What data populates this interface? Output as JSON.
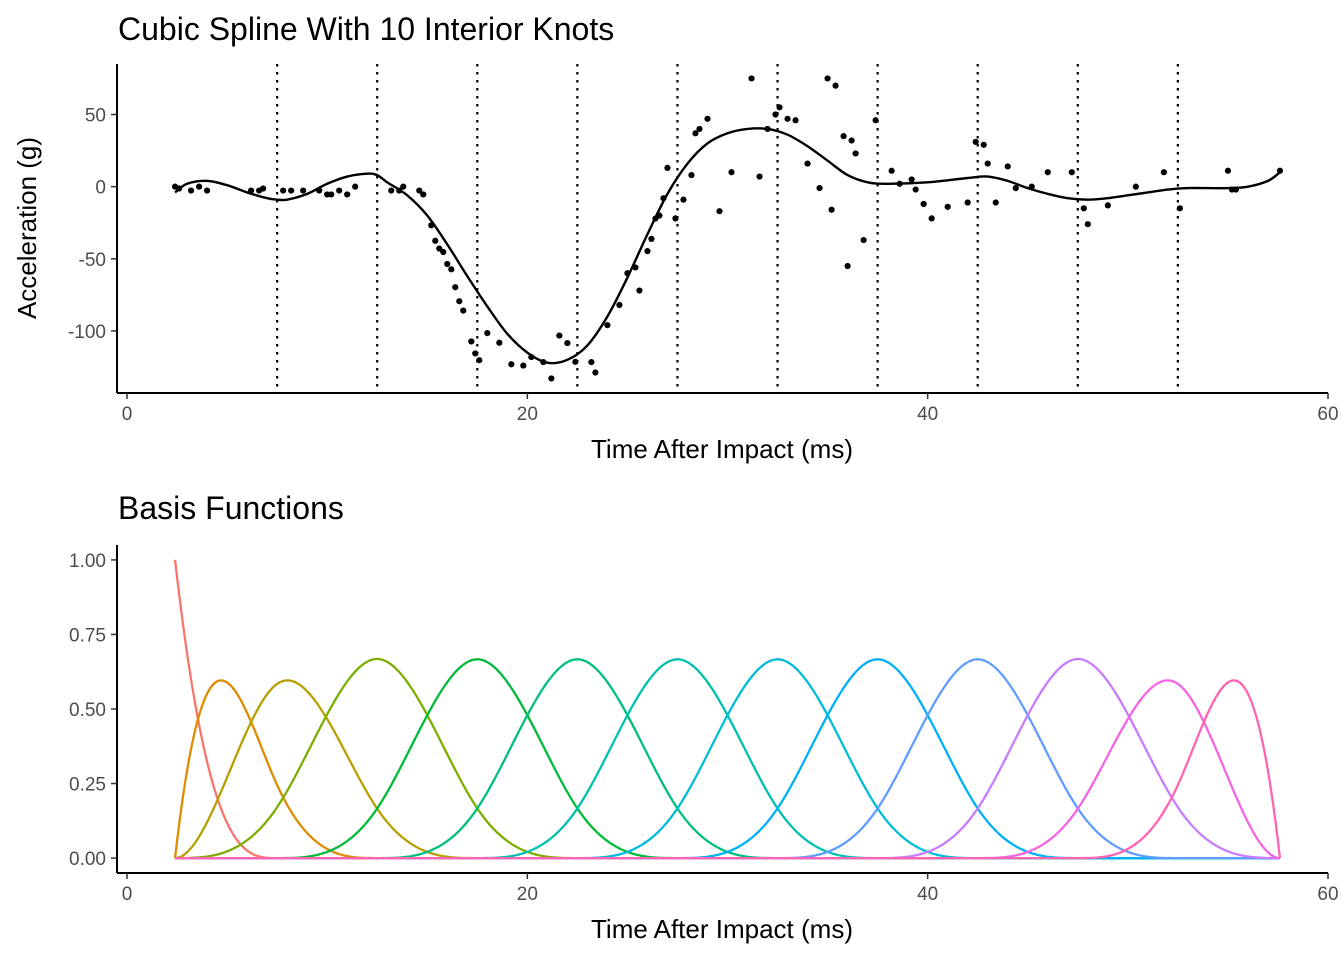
{
  "chart_data": [
    {
      "type": "scatter",
      "title": "Cubic Spline With 10 Interior Knots",
      "xlabel": "Time After Impact (ms)",
      "ylabel": "Acceleration (g)",
      "xlim": [
        -0.5,
        60
      ],
      "ylim": [
        -143,
        85
      ],
      "x_ticks": [
        0,
        20,
        40,
        60
      ],
      "x_tick_labels": [
        "0",
        "20",
        "40",
        "60"
      ],
      "y_ticks": [
        50,
        0,
        -50,
        -100
      ],
      "y_tick_labels": [
        "50",
        "0",
        "-50",
        "-100"
      ],
      "knots": [
        7.5,
        12.5,
        17.5,
        22.5,
        27.5,
        32.5,
        37.5,
        42.5,
        47.5,
        52.5
      ],
      "grid": false,
      "legend": "none",
      "points": [
        [
          2.4,
          0.0
        ],
        [
          2.6,
          -1.3
        ],
        [
          3.2,
          -2.7
        ],
        [
          3.6,
          0.0
        ],
        [
          4.0,
          -2.7
        ],
        [
          6.2,
          -2.7
        ],
        [
          6.6,
          -2.7
        ],
        [
          6.8,
          -1.3
        ],
        [
          7.8,
          -2.7
        ],
        [
          8.2,
          -2.7
        ],
        [
          8.8,
          -2.7
        ],
        [
          9.6,
          -2.7
        ],
        [
          10.0,
          -5.4
        ],
        [
          10.2,
          -5.4
        ],
        [
          10.6,
          -2.7
        ],
        [
          11.0,
          -5.4
        ],
        [
          11.4,
          0.0
        ],
        [
          13.2,
          -2.7
        ],
        [
          13.6,
          -2.7
        ],
        [
          13.8,
          0.0
        ],
        [
          14.6,
          -2.7
        ],
        [
          14.8,
          -5.4
        ],
        [
          15.2,
          -26.8
        ],
        [
          15.4,
          -37.5
        ],
        [
          15.6,
          -42.9
        ],
        [
          15.8,
          -45.3
        ],
        [
          16.0,
          -53.6
        ],
        [
          16.2,
          -57.3
        ],
        [
          16.4,
          -69.7
        ],
        [
          16.6,
          -79.4
        ],
        [
          16.8,
          -85.9
        ],
        [
          17.2,
          -107.3
        ],
        [
          17.4,
          -115.6
        ],
        [
          17.6,
          -120.3
        ],
        [
          18.0,
          -101.5
        ],
        [
          18.6,
          -108.2
        ],
        [
          19.2,
          -123.1
        ],
        [
          19.8,
          -124.0
        ],
        [
          20.2,
          -118.1
        ],
        [
          20.8,
          -121.6
        ],
        [
          21.2,
          -132.9
        ],
        [
          21.6,
          -103.2
        ],
        [
          22.0,
          -108.4
        ],
        [
          22.4,
          -121.4
        ],
        [
          23.2,
          -121.6
        ],
        [
          23.4,
          -128.8
        ],
        [
          24.0,
          -96.0
        ],
        [
          24.6,
          -82.0
        ],
        [
          25.0,
          -60.0
        ],
        [
          25.4,
          -56.0
        ],
        [
          25.6,
          -72.0
        ],
        [
          26.0,
          -44.7
        ],
        [
          26.2,
          -36.2
        ],
        [
          26.4,
          -22.1
        ],
        [
          26.6,
          -20.0
        ],
        [
          26.8,
          -8.0
        ],
        [
          27.0,
          13.0
        ],
        [
          27.4,
          -22.0
        ],
        [
          27.8,
          -9.0
        ],
        [
          28.2,
          8.0
        ],
        [
          28.4,
          37.0
        ],
        [
          28.6,
          40.0
        ],
        [
          29.0,
          47.0
        ],
        [
          29.6,
          -17.0
        ],
        [
          30.2,
          10.0
        ],
        [
          31.2,
          75.0
        ],
        [
          31.6,
          7.0
        ],
        [
          32.0,
          40.0
        ],
        [
          32.4,
          50.0
        ],
        [
          32.6,
          55.0
        ],
        [
          33.0,
          47.0
        ],
        [
          33.4,
          46.0
        ],
        [
          34.0,
          16.0
        ],
        [
          34.6,
          -1.0
        ],
        [
          35.0,
          75.0
        ],
        [
          35.2,
          -16.0
        ],
        [
          35.4,
          70.0
        ],
        [
          35.8,
          35.0
        ],
        [
          36.0,
          -55.0
        ],
        [
          36.2,
          32.0
        ],
        [
          36.4,
          23.0
        ],
        [
          36.8,
          -37.0
        ],
        [
          37.4,
          46.0
        ],
        [
          38.2,
          11.0
        ],
        [
          38.6,
          2.0
        ],
        [
          39.2,
          5.0
        ],
        [
          39.4,
          -2.0
        ],
        [
          39.8,
          -12.0
        ],
        [
          40.2,
          -22.0
        ],
        [
          41.0,
          -14.0
        ],
        [
          42.0,
          -11.0
        ],
        [
          42.4,
          31.0
        ],
        [
          42.8,
          29.0
        ],
        [
          43.0,
          16.0
        ],
        [
          43.4,
          -11.0
        ],
        [
          44.0,
          14.0
        ],
        [
          44.4,
          -1.0
        ],
        [
          45.2,
          0.0
        ],
        [
          46.0,
          10.0
        ],
        [
          47.2,
          10.0
        ],
        [
          47.8,
          -15.0
        ],
        [
          48.0,
          -26.0
        ],
        [
          49.0,
          -13.0
        ],
        [
          50.4,
          0.0
        ],
        [
          51.8,
          10.0
        ],
        [
          52.6,
          -15.0
        ],
        [
          55.0,
          11.0
        ],
        [
          55.2,
          -2.0
        ],
        [
          55.4,
          -2.0
        ],
        [
          57.6,
          11.0
        ]
      ],
      "fit_line": [
        [
          2.4,
          -4.0
        ],
        [
          3.0,
          2.0
        ],
        [
          4.0,
          4.0
        ],
        [
          5.0,
          1.0
        ],
        [
          6.0,
          -4.0
        ],
        [
          7.0,
          -8.0
        ],
        [
          7.5,
          -9.0
        ],
        [
          8.0,
          -9.0
        ],
        [
          9.0,
          -5.0
        ],
        [
          10.0,
          2.0
        ],
        [
          11.0,
          7.0
        ],
        [
          12.0,
          9.0
        ],
        [
          12.5,
          8.0
        ],
        [
          13.0,
          3.0
        ],
        [
          14.0,
          -6.0
        ],
        [
          15.0,
          -20.0
        ],
        [
          16.0,
          -40.0
        ],
        [
          17.0,
          -62.0
        ],
        [
          18.0,
          -83.0
        ],
        [
          19.0,
          -102.0
        ],
        [
          20.0,
          -115.0
        ],
        [
          21.0,
          -122.0
        ],
        [
          22.0,
          -120.0
        ],
        [
          23.0,
          -110.0
        ],
        [
          24.0,
          -90.0
        ],
        [
          25.0,
          -63.0
        ],
        [
          26.0,
          -33.0
        ],
        [
          27.0,
          -5.0
        ],
        [
          28.0,
          16.0
        ],
        [
          29.0,
          30.0
        ],
        [
          30.0,
          37.0
        ],
        [
          31.0,
          40.0
        ],
        [
          32.0,
          40.0
        ],
        [
          33.0,
          36.0
        ],
        [
          34.0,
          28.0
        ],
        [
          35.0,
          18.0
        ],
        [
          36.0,
          8.0
        ],
        [
          37.0,
          3.0
        ],
        [
          38.0,
          2.0
        ],
        [
          40.0,
          3.0
        ],
        [
          42.0,
          6.0
        ],
        [
          43.0,
          7.0
        ],
        [
          44.0,
          4.0
        ],
        [
          45.0,
          -1.0
        ],
        [
          46.0,
          -5.0
        ],
        [
          47.0,
          -8.0
        ],
        [
          48.0,
          -9.0
        ],
        [
          49.0,
          -8.0
        ],
        [
          50.0,
          -6.0
        ],
        [
          51.0,
          -4.0
        ],
        [
          52.0,
          -2.0
        ],
        [
          53.0,
          -1.0
        ],
        [
          54.0,
          -1.0
        ],
        [
          55.0,
          -1.0
        ],
        [
          56.0,
          0.0
        ],
        [
          57.0,
          4.0
        ],
        [
          57.6,
          10.0
        ]
      ]
    },
    {
      "type": "line",
      "title": "Basis Functions",
      "xlabel": "Time After Impact (ms)",
      "ylabel": "",
      "xlim": [
        -0.5,
        60
      ],
      "ylim": [
        -0.05,
        1.05
      ],
      "x_ticks": [
        0,
        20,
        40,
        60
      ],
      "x_tick_labels": [
        "0",
        "20",
        "40",
        "60"
      ],
      "y_ticks": [
        1.0,
        0.75,
        0.5,
        0.25,
        0.0
      ],
      "y_tick_labels": [
        "1.00",
        "0.75",
        "0.50",
        "0.25",
        "0.00"
      ],
      "grid": false,
      "legend": "none",
      "spline_degree": 3,
      "boundary_knots": [
        2.4,
        57.6
      ],
      "interior_knots": [
        7.5,
        12.5,
        17.5,
        22.5,
        27.5,
        32.5,
        37.5,
        42.5,
        47.5,
        52.5
      ],
      "series": [
        {
          "color": "#F8766D"
        },
        {
          "color": "#DE8C00"
        },
        {
          "color": "#B79F00"
        },
        {
          "color": "#7CAE00"
        },
        {
          "color": "#00BA38"
        },
        {
          "color": "#00BF7D"
        },
        {
          "color": "#00C0AF"
        },
        {
          "color": "#00BCD8"
        },
        {
          "color": "#00B0F6"
        },
        {
          "color": "#619CFF"
        },
        {
          "color": "#C77CFF"
        },
        {
          "color": "#F564E3"
        },
        {
          "color": "#FF64B0"
        }
      ]
    }
  ]
}
